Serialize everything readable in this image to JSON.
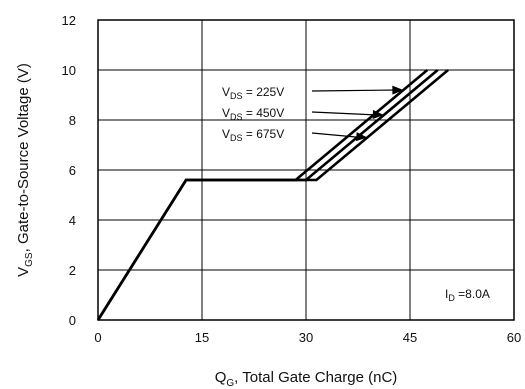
{
  "chart_data": {
    "type": "line",
    "title": "",
    "xlabel": "Q",
    "xlabel_sub": "G",
    "xlabel_rest": ", Total Gate Charge (nC)",
    "ylabel": "V",
    "ylabel_sub": "GS",
    "ylabel_rest": ", Gate-to-Source Voltage (V)",
    "xlim": [
      0,
      60
    ],
    "ylim": [
      0,
      12
    ],
    "xticks": [
      0,
      15,
      30,
      45,
      60
    ],
    "yticks": [
      0,
      2,
      4,
      6,
      8,
      10,
      12
    ],
    "grid": true,
    "series": [
      {
        "name": "V",
        "sub": "DS",
        "rest": " = 225V",
        "x": [
          0,
          12.7,
          28.5,
          47.5
        ],
        "y": [
          0,
          5.6,
          5.6,
          10
        ]
      },
      {
        "name": "V",
        "sub": "DS",
        "rest": " = 450V",
        "x": [
          0,
          12.7,
          30.0,
          49.0
        ],
        "y": [
          0,
          5.6,
          5.6,
          10
        ]
      },
      {
        "name": "V",
        "sub": "DS",
        "rest": " = 675V",
        "x": [
          0,
          12.7,
          31.5,
          50.5
        ],
        "y": [
          0,
          5.6,
          5.6,
          10
        ]
      }
    ],
    "annotation": {
      "main": "I",
      "sub": "D",
      "rest": " =8.0A"
    }
  }
}
